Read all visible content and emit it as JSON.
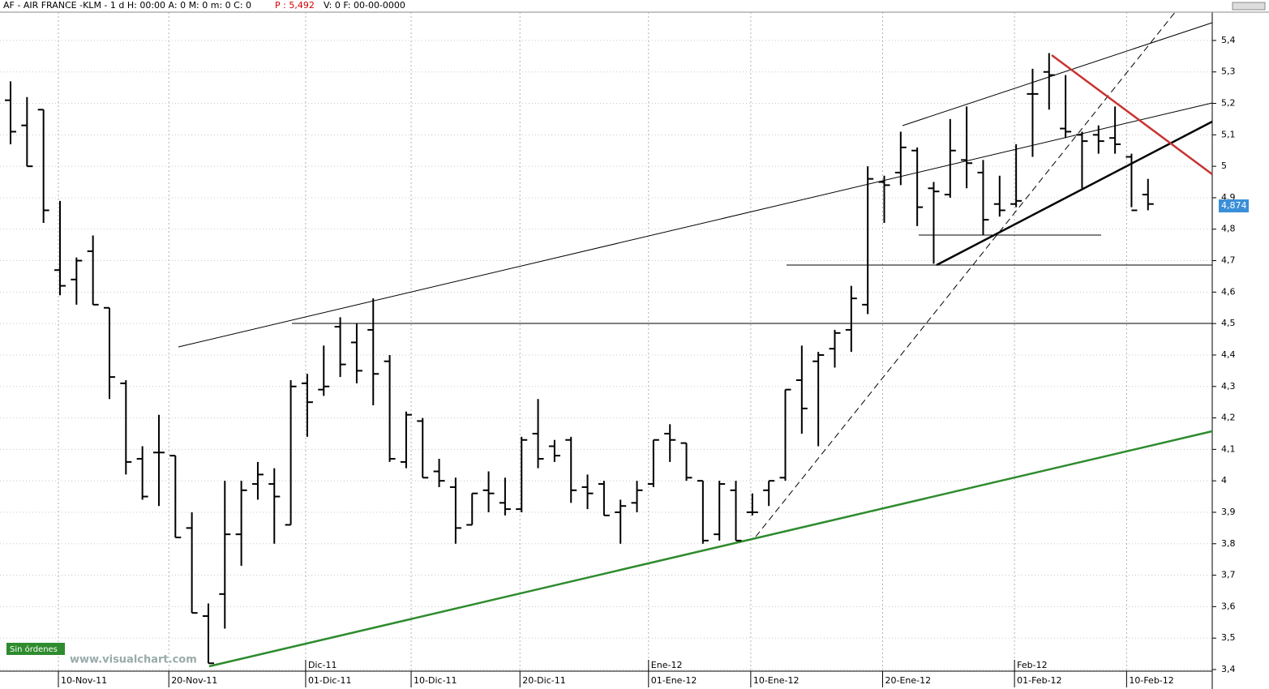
{
  "header": {
    "symbol": "AF - AIR FRANCE -KLM -  1 d H: 00:00 A: 0 M: 0 m: 0 C: 0",
    "price": "P : 5,492",
    "rest": "V: 0 F: 00-00-0000"
  },
  "status": "Sin órdenes",
  "watermark": "www.visualchart.com",
  "chart_data": {
    "type": "ohlc",
    "categories": [
      null,
      null,
      null,
      null,
      null,
      null,
      null,
      null,
      null,
      null,
      null,
      null,
      null,
      null,
      null,
      null,
      null,
      null,
      null,
      null,
      null,
      null,
      null,
      null,
      null,
      null,
      null,
      null,
      null,
      null,
      null,
      null,
      null,
      null,
      null,
      null,
      null,
      null,
      null,
      null,
      null,
      null,
      null,
      null,
      null,
      null,
      null,
      null,
      null,
      null,
      null,
      null,
      null,
      null,
      null,
      null,
      null,
      null,
      null,
      null,
      null,
      null,
      null,
      null,
      null,
      null,
      null,
      null,
      null,
      null
    ],
    "open": [
      5.21,
      5.13,
      5.18,
      4.67,
      4.64,
      4.73,
      4.55,
      4.31,
      4.07,
      4.09,
      4.08,
      3.85,
      3.57,
      3.64,
      3.83,
      3.99,
      3.99,
      3.86,
      4.31,
      4.29,
      4.49,
      4.44,
      4.48,
      4.38,
      4.06,
      4.19,
      4.03,
      3.98,
      3.86,
      3.97,
      3.93,
      3.91,
      4.15,
      4.11,
      4.13,
      3.98,
      3.99,
      3.9,
      3.93,
      3.99,
      4.15,
      4.12,
      4.0,
      3.83,
      3.97,
      3.9,
      3.97,
      4.01,
      4.32,
      4.38,
      4.42,
      4.48,
      4.56,
      4.95,
      4.98,
      5.05,
      4.93,
      4.91,
      5.02,
      4.98,
      4.88,
      4.88,
      5.23,
      5.3,
      5.12,
      5.1,
      5.1,
      5.09,
      5.03,
      4.91
    ],
    "high": [
      5.27,
      5.22,
      5.18,
      4.89,
      4.71,
      4.78,
      4.55,
      4.32,
      4.11,
      4.21,
      4.08,
      3.9,
      3.61,
      4.0,
      4.0,
      4.06,
      4.04,
      4.32,
      4.34,
      4.43,
      4.52,
      4.5,
      4.58,
      4.4,
      4.22,
      4.2,
      4.07,
      4.01,
      3.96,
      4.03,
      4.01,
      4.14,
      4.26,
      4.13,
      4.14,
      4.02,
      4.0,
      3.94,
      4.0,
      4.13,
      4.18,
      4.12,
      4.0,
      4.0,
      4.0,
      3.96,
      4.0,
      4.29,
      4.43,
      4.41,
      4.48,
      4.62,
      5.0,
      4.97,
      5.11,
      5.06,
      4.95,
      5.15,
      5.19,
      5.02,
      4.97,
      5.07,
      5.31,
      5.36,
      5.29,
      5.11,
      5.13,
      5.19,
      5.04,
      4.96
    ],
    "low": [
      5.07,
      5.0,
      4.82,
      4.59,
      4.56,
      4.56,
      4.26,
      4.02,
      3.94,
      3.92,
      3.82,
      3.58,
      3.42,
      3.53,
      3.73,
      3.94,
      3.8,
      3.86,
      4.14,
      4.27,
      4.33,
      4.31,
      4.24,
      4.06,
      4.04,
      4.01,
      3.98,
      3.8,
      3.86,
      3.9,
      3.89,
      3.9,
      4.04,
      4.06,
      3.93,
      3.91,
      3.89,
      3.8,
      3.9,
      3.98,
      4.06,
      4.0,
      3.8,
      3.81,
      3.81,
      3.89,
      3.92,
      4.0,
      4.15,
      4.11,
      4.36,
      4.41,
      4.53,
      4.82,
      4.94,
      4.81,
      4.69,
      4.9,
      4.93,
      4.78,
      4.84,
      4.87,
      5.03,
      5.18,
      5.09,
      4.93,
      5.04,
      5.04,
      4.87,
      4.86
    ],
    "close": [
      5.11,
      5.0,
      4.86,
      4.62,
      4.7,
      4.56,
      4.33,
      4.06,
      3.95,
      4.09,
      3.82,
      3.58,
      3.42,
      3.83,
      3.97,
      4.02,
      3.95,
      4.3,
      4.25,
      4.3,
      4.37,
      4.35,
      4.34,
      4.07,
      4.21,
      4.01,
      4.0,
      3.85,
      3.96,
      3.96,
      3.91,
      4.13,
      4.07,
      4.08,
      3.97,
      3.96,
      3.89,
      3.92,
      3.97,
      4.13,
      4.13,
      4.01,
      3.81,
      3.99,
      3.81,
      3.9,
      4.0,
      4.29,
      4.23,
      4.4,
      4.47,
      4.58,
      4.96,
      4.94,
      5.06,
      4.87,
      4.92,
      5.05,
      5.01,
      4.83,
      4.86,
      4.89,
      5.23,
      5.29,
      5.11,
      5.08,
      5.08,
      5.07,
      4.86,
      4.88
    ],
    "color": "#000000",
    "ylim": [
      3.4,
      5.49
    ],
    "yticks": [
      {
        "value": 3.4,
        "label": "3,4"
      },
      {
        "value": 3.5,
        "label": "3,5"
      },
      {
        "value": 3.6,
        "label": "3,6"
      },
      {
        "value": 3.7,
        "label": "3,7"
      },
      {
        "value": 3.8,
        "label": "3,8"
      },
      {
        "value": 3.9,
        "label": "3,9"
      },
      4,
      {
        "value": 4.1,
        "label": "4,1"
      },
      {
        "value": 4.2,
        "label": "4,2"
      },
      {
        "value": 4.3,
        "label": "4,3"
      },
      {
        "value": 4.4,
        "label": "4,4"
      },
      {
        "value": 4.5,
        "label": "4,5"
      },
      {
        "value": 4.6,
        "label": "4,6"
      },
      {
        "value": 4.7,
        "label": "4,7"
      },
      {
        "value": 4.8,
        "label": "4,8"
      },
      {
        "value": 4.9,
        "label": "4,9"
      },
      5,
      {
        "value": 5.1,
        "label": "5,1"
      },
      {
        "value": 5.2,
        "label": "5,2"
      },
      {
        "value": 5.3,
        "label": "5,3"
      },
      {
        "value": 5.4,
        "label": "5,4"
      }
    ],
    "xticks": [
      {
        "value": 3,
        "label": "10-Nov-11"
      },
      {
        "value": 9.7,
        "label": "20-Nov-11"
      },
      {
        "value": 18,
        "label": "01-Dic-11"
      },
      {
        "value": 24.4,
        "label": "10-Dic-11"
      },
      {
        "value": 31,
        "label": "20-Dic-11"
      },
      {
        "value": 38.8,
        "label": "01-Ene-12"
      },
      {
        "value": 45,
        "label": "10-Ene-12"
      },
      {
        "value": 53,
        "label": "20-Ene-12"
      },
      {
        "value": 61,
        "label": "01-Feb-12"
      },
      {
        "value": 67.8,
        "label": "10-Feb-12"
      }
    ],
    "month_ticks": [
      {
        "value": 18,
        "label": "Dic-11"
      },
      {
        "value": 38.8,
        "label": "Ene-12"
      },
      {
        "value": 61,
        "label": "Feb-12"
      }
    ],
    "last_price": {
      "value": 4.874,
      "label": "4,874"
    },
    "grid": true
  }
}
